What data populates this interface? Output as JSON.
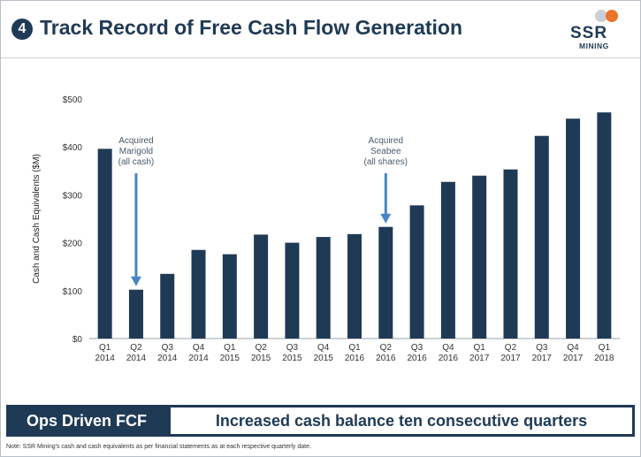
{
  "header": {
    "slide_number": "4",
    "title": "Track Record of Free Cash Flow Generation",
    "logo_text": "SSR",
    "logo_sub": "MINING"
  },
  "colors": {
    "bar": "#1f3a55",
    "arrow": "#4a86bf",
    "logo_orange": "#e9742a"
  },
  "chart_data": {
    "type": "bar",
    "ylabel": "Cash and Cash Equivalents ($M)",
    "ylim": [
      0,
      500
    ],
    "yticks": [
      "$0",
      "$100",
      "$200",
      "$300",
      "$400",
      "$500"
    ],
    "grid": false,
    "categories": [
      [
        "Q1",
        "2014"
      ],
      [
        "Q2",
        "2014"
      ],
      [
        "Q3",
        "2014"
      ],
      [
        "Q4",
        "2014"
      ],
      [
        "Q1",
        "2015"
      ],
      [
        "Q2",
        "2015"
      ],
      [
        "Q3",
        "2015"
      ],
      [
        "Q4",
        "2015"
      ],
      [
        "Q1",
        "2016"
      ],
      [
        "Q2",
        "2016"
      ],
      [
        "Q3",
        "2016"
      ],
      [
        "Q4",
        "2016"
      ],
      [
        "Q1",
        "2017"
      ],
      [
        "Q2",
        "2017"
      ],
      [
        "Q3",
        "2017"
      ],
      [
        "Q4",
        "2017"
      ],
      [
        "Q1",
        "2018"
      ]
    ],
    "values": [
      396,
      102,
      135,
      185,
      176,
      217,
      200,
      212,
      218,
      233,
      278,
      327,
      340,
      353,
      423,
      459,
      472
    ],
    "annotations": [
      {
        "index": 1,
        "lines": [
          "Acquired",
          "Marigold",
          "(all cash)"
        ]
      },
      {
        "index": 9,
        "lines": [
          "Acquired",
          "Seabee",
          "(all shares)"
        ]
      }
    ]
  },
  "banner": {
    "label": "Ops Driven FCF",
    "text": "Increased cash balance ten consecutive quarters"
  },
  "footnote": "Note: SSR Mining's cash and cash equivalents as per financial statements as at each respective quarterly date."
}
